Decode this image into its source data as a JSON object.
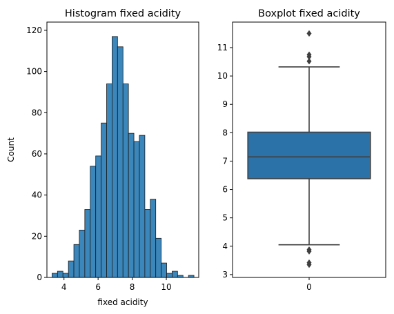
{
  "chart_data": [
    {
      "type": "bar",
      "title": "Histogram fixed acidity",
      "xlabel": "fixed acidity",
      "ylabel": "Count",
      "xlim": [
        3.0,
        11.9
      ],
      "ylim": [
        0,
        124
      ],
      "xticks": [
        4,
        6,
        8,
        10
      ],
      "yticks": [
        0,
        20,
        40,
        60,
        80,
        100,
        120
      ],
      "bin_start": 3.3,
      "bin_width": 0.32,
      "counts": [
        2,
        3,
        2,
        8,
        16,
        23,
        33,
        54,
        59,
        75,
        94,
        117,
        112,
        94,
        70,
        66,
        69,
        33,
        38,
        19,
        7,
        2,
        3,
        1,
        0,
        1
      ],
      "color": "#3b86bb",
      "edge_color": "#1a1a1a"
    },
    {
      "type": "box",
      "title": "Boxplot fixed acidity",
      "categories": [
        "0"
      ],
      "ylim": [
        2.9,
        11.9
      ],
      "yticks": [
        3,
        4,
        5,
        6,
        7,
        8,
        9,
        10,
        11
      ],
      "q1": 6.38,
      "median": 7.15,
      "q3": 8.02,
      "whisker_low": 4.05,
      "whisker_high": 10.32,
      "outliers": [
        11.5,
        10.75,
        10.68,
        10.52,
        3.88,
        3.82,
        3.42,
        3.35
      ],
      "color": "#2b72a8",
      "line_color": "#3f3f3f"
    }
  ]
}
